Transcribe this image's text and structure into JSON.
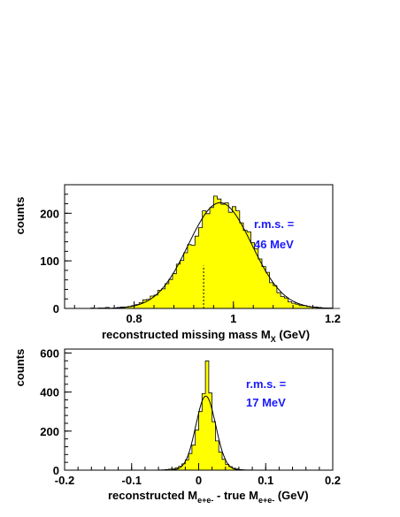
{
  "chart_data": [
    {
      "type": "histogram",
      "ylabel": "counts",
      "xlabel": "reconstructed missing mass M",
      "xlabel_sub": "X",
      "xlabel_unit": " (GeV)",
      "xlim": [
        0.66,
        1.2
      ],
      "ylim": [
        0,
        260
      ],
      "xticks": [
        0.8,
        1,
        1.2
      ],
      "xtick_labels": [
        "0.8",
        "1",
        "1.2"
      ],
      "yticks": [
        0,
        100,
        200
      ],
      "ytick_labels": [
        "0",
        "100",
        "200"
      ],
      "annotation_line1": "r.m.s. =",
      "annotation_line2": "46 MeV",
      "fill_color": "#ffff00",
      "marker_x": 0.94,
      "marker_y": 90,
      "bin_edges_start": 0.66,
      "bin_width": 0.0075,
      "counts": [
        0,
        0,
        0,
        0,
        0,
        0,
        0,
        1,
        0,
        1,
        1,
        2,
        0,
        1,
        2,
        3,
        3,
        4,
        6,
        8,
        12,
        18,
        19,
        26,
        28,
        38,
        41,
        52,
        61,
        73,
        93,
        101,
        117,
        134,
        133,
        152,
        170,
        205,
        199,
        212,
        236,
        230,
        219,
        222,
        202,
        214,
        205,
        180,
        164,
        161,
        138,
        125,
        104,
        88,
        76,
        54,
        48,
        33,
        25,
        22,
        14,
        11,
        9,
        6,
        6,
        4,
        3,
        3,
        2,
        1,
        1,
        1,
        0,
        0
      ]
    },
    {
      "type": "histogram",
      "ylabel": "counts",
      "xlabel_prefix": "reconstructed M",
      "xlabel_sub1": "e+e-",
      "xlabel_middle": " -  true M",
      "xlabel_sub2": "e+e-",
      "xlabel_unit": " (GeV)",
      "xlim": [
        -0.2,
        0.2
      ],
      "ylim": [
        0,
        620
      ],
      "xticks": [
        -0.2,
        -0.1,
        0,
        0.1,
        0.2
      ],
      "xtick_labels": [
        "-0.2",
        "-0.1",
        "0",
        "0.1",
        "0.2"
      ],
      "yticks": [
        0,
        200,
        400,
        600
      ],
      "ytick_labels": [
        "0",
        "200",
        "400",
        "600"
      ],
      "annotation_line1": "r.m.s. =",
      "annotation_line2": "17 MeV",
      "fill_color": "#ffff00",
      "bin_edges_start": -0.06,
      "bin_width": 0.005,
      "counts": [
        1,
        2,
        3,
        5,
        7,
        12,
        20,
        32,
        52,
        85,
        128,
        205,
        300,
        392,
        560,
        395,
        248,
        150,
        92,
        55,
        30,
        18,
        10,
        6,
        3,
        2,
        1,
        1
      ]
    }
  ]
}
